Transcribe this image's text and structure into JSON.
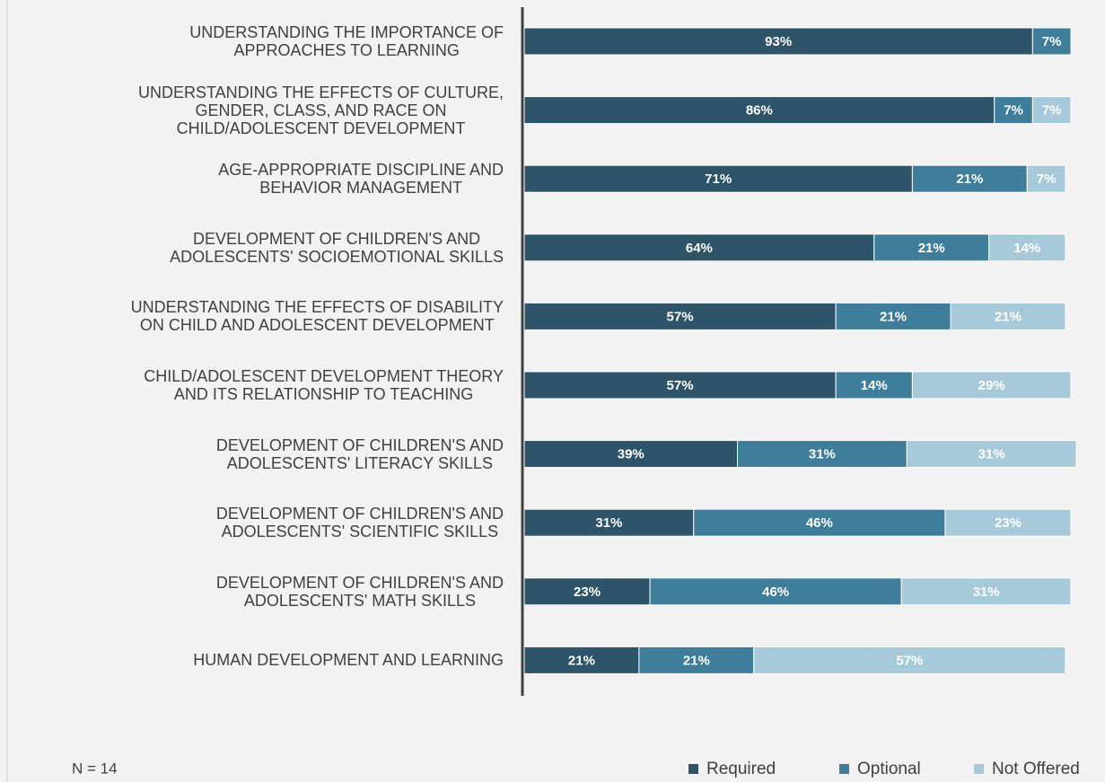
{
  "chart_data": {
    "type": "stacked-bar-horizontal",
    "categories": [
      "UNDERSTANDING THE IMPORTANCE OF\nAPPROACHES TO LEARNING",
      "UNDERSTANDING THE EFFECTS OF CULTURE,\nGENDER, CLASS, AND RACE ON\nCHILD/ADOLESCENT DEVELOPMENT",
      "AGE-APPROPRIATE DISCIPLINE AND\nBEHAVIOR MANAGEMENT",
      "DEVELOPMENT OF CHILDREN'S AND\nADOLESCENTS' SOCIOEMOTIONAL SKILLS",
      "UNDERSTANDING THE EFFECTS OF DISABILITY\nON CHILD AND ADOLESCENT DEVELOPMENT",
      "CHILD/ADOLESCENT DEVELOPMENT THEORY\nAND ITS RELATIONSHIP TO TEACHING",
      "DEVELOPMENT OF CHILDREN'S AND\nADOLESCENTS' LITERACY SKILLS",
      "DEVELOPMENT OF CHILDREN'S AND\nADOLESCENTS' SCIENTIFIC SKILLS",
      "DEVELOPMENT OF CHILDREN'S AND\nADOLESCENTS' MATH SKILLS",
      "HUMAN DEVELOPMENT AND LEARNING"
    ],
    "series": [
      {
        "name": "Required",
        "color": "#2d5468",
        "values": [
          93,
          86,
          71,
          64,
          57,
          57,
          39,
          31,
          23,
          21
        ],
        "value_labels": [
          "93%",
          "86%",
          "71%",
          "64%",
          "57%",
          "57%",
          "39%",
          "31%",
          "23%",
          "21%"
        ]
      },
      {
        "name": "Optional",
        "color": "#3e7e9b",
        "values": [
          7,
          7,
          21,
          21,
          21,
          14,
          31,
          46,
          46,
          21
        ],
        "value_labels": [
          "7%",
          "7%",
          "21%",
          "21%",
          "21%",
          "14%",
          "31%",
          "46%",
          "46%",
          "21%"
        ]
      },
      {
        "name": "Not Offered",
        "color": "#a7cadb",
        "values": [
          null,
          7,
          7,
          14,
          21,
          29,
          31,
          23,
          31,
          57
        ],
        "value_labels": [
          null,
          "7%",
          "7%",
          "14%",
          "21%",
          "29%",
          "31%",
          "23%",
          "31%",
          "57%"
        ]
      }
    ],
    "xlim": [
      0,
      100
    ],
    "note": "N = 14"
  }
}
